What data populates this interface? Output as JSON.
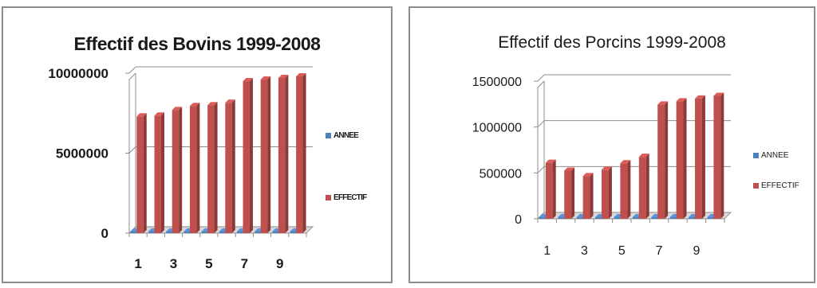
{
  "chart_data": [
    {
      "type": "bar",
      "title": "Effectif des Bovins 1999-2008",
      "categories": [
        "1",
        "2",
        "3",
        "4",
        "5",
        "6",
        "7",
        "8",
        "9",
        "10"
      ],
      "x_tick_labels": [
        "1",
        "3",
        "5",
        "7",
        "9"
      ],
      "y_tick_labels": [
        "0",
        "5000000",
        "10000000"
      ],
      "ylim": [
        0,
        10000000
      ],
      "xlabel": "",
      "ylabel": "",
      "grid": true,
      "legend_position": "right",
      "series": [
        {
          "name": "ANNEE",
          "color": "#4f81bd",
          "values": [
            1999,
            2000,
            2001,
            2002,
            2003,
            2004,
            2005,
            2006,
            2007,
            2008
          ]
        },
        {
          "name": "EFFECTIF",
          "color": "#c0504d",
          "values": [
            7300000,
            7350000,
            7700000,
            7950000,
            8000000,
            8150000,
            9500000,
            9600000,
            9700000,
            9800000
          ]
        }
      ]
    },
    {
      "type": "bar",
      "title": "Effectif des Porcins 1999-2008",
      "categories": [
        "1",
        "2",
        "3",
        "4",
        "5",
        "6",
        "7",
        "8",
        "9",
        "10"
      ],
      "x_tick_labels": [
        "1",
        "3",
        "5",
        "7",
        "9"
      ],
      "y_tick_labels": [
        "0",
        "500000",
        "1000000",
        "1500000"
      ],
      "ylim": [
        0,
        1500000
      ],
      "xlabel": "",
      "ylabel": "",
      "grid": true,
      "legend_position": "right",
      "series": [
        {
          "name": "ANNEE",
          "color": "#4f81bd",
          "values": [
            1999,
            2000,
            2001,
            2002,
            2003,
            2004,
            2005,
            2006,
            2007,
            2008
          ]
        },
        {
          "name": "EFFECTIF",
          "color": "#c0504d",
          "values": [
            610000,
            525000,
            465000,
            535000,
            605000,
            675000,
            1245000,
            1280000,
            1310000,
            1340000
          ]
        }
      ]
    }
  ]
}
